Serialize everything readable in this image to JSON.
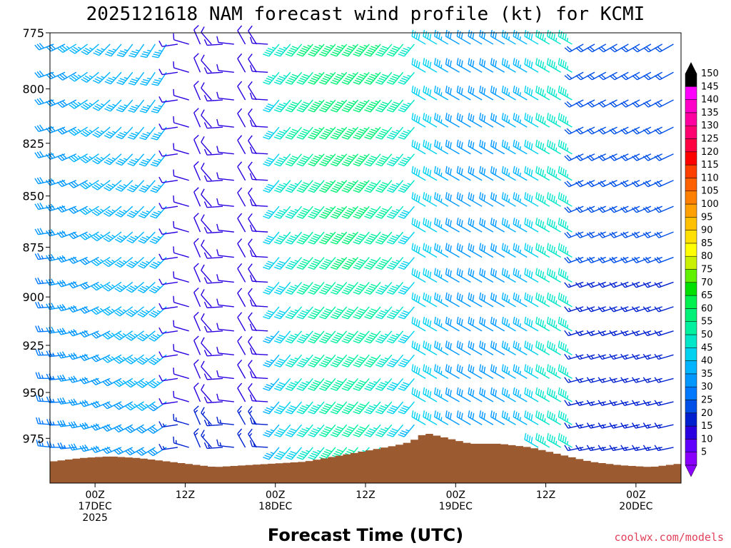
{
  "title": "2025121618 NAM forecast wind profile (kt) for KCMI",
  "credit": "coolwx.com/models",
  "colors": {
    "terrain": "#9c5a30",
    "background": "#ffffff",
    "axis": "#000000"
  },
  "chart_data": {
    "type": "wind-barb time-height cross section",
    "xlabel": "Forecast Time (UTC)",
    "x_ticks": [
      {
        "hour": 6,
        "lines": [
          "00Z",
          "17DEC",
          "2025"
        ]
      },
      {
        "hour": 18,
        "lines": [
          "12Z"
        ]
      },
      {
        "hour": 30,
        "lines": [
          "00Z",
          "18DEC"
        ]
      },
      {
        "hour": 42,
        "lines": [
          "12Z"
        ]
      },
      {
        "hour": 54,
        "lines": [
          "00Z",
          "19DEC"
        ]
      },
      {
        "hour": 66,
        "lines": [
          "12Z"
        ]
      },
      {
        "hour": 78,
        "lines": [
          "00Z",
          "20DEC"
        ]
      }
    ],
    "y_ticks": [
      775,
      800,
      825,
      850,
      875,
      900,
      925,
      950,
      975
    ],
    "ylim": [
      775,
      1000
    ],
    "xlim": [
      0,
      84
    ],
    "pressure_scale": "log",
    "colorbar": {
      "labels": [
        5,
        10,
        15,
        20,
        25,
        30,
        35,
        40,
        45,
        50,
        55,
        60,
        65,
        70,
        75,
        80,
        85,
        90,
        95,
        100,
        105,
        110,
        115,
        120,
        125,
        130,
        135,
        140,
        145,
        150
      ],
      "colors": [
        "#8a00ff",
        "#6000ff",
        "#2a00e0",
        "#0020d0",
        "#0050e8",
        "#0078ff",
        "#0098ff",
        "#00b4ff",
        "#00d2f0",
        "#00e6c8",
        "#00f0a0",
        "#00f078",
        "#00f050",
        "#00e000",
        "#60f000",
        "#c8f000",
        "#ffff00",
        "#ffe000",
        "#ffc000",
        "#ffa000",
        "#ff8000",
        "#ff6000",
        "#ff4000",
        "#ff0000",
        "#ff0040",
        "#ff0070",
        "#ff00a0",
        "#ff00c8",
        "#ff00ff",
        "#000000"
      ]
    },
    "surface_pressure": [
      {
        "hour": 0,
        "p": 988
      },
      {
        "hour": 4,
        "p": 986
      },
      {
        "hour": 8,
        "p": 985
      },
      {
        "hour": 12,
        "p": 986
      },
      {
        "hour": 16,
        "p": 988
      },
      {
        "hour": 20,
        "p": 990
      },
      {
        "hour": 22,
        "p": 991
      },
      {
        "hour": 26,
        "p": 990
      },
      {
        "hour": 30,
        "p": 989
      },
      {
        "hour": 34,
        "p": 988
      },
      {
        "hour": 38,
        "p": 985
      },
      {
        "hour": 42,
        "p": 982
      },
      {
        "hour": 46,
        "p": 979
      },
      {
        "hour": 48,
        "p": 977
      },
      {
        "hour": 50,
        "p": 972
      },
      {
        "hour": 52,
        "p": 974
      },
      {
        "hour": 56,
        "p": 978
      },
      {
        "hour": 60,
        "p": 978
      },
      {
        "hour": 64,
        "p": 980
      },
      {
        "hour": 68,
        "p": 984
      },
      {
        "hour": 72,
        "p": 988
      },
      {
        "hour": 76,
        "p": 990
      },
      {
        "hour": 80,
        "p": 991
      },
      {
        "hour": 84,
        "p": 989
      }
    ]
  }
}
